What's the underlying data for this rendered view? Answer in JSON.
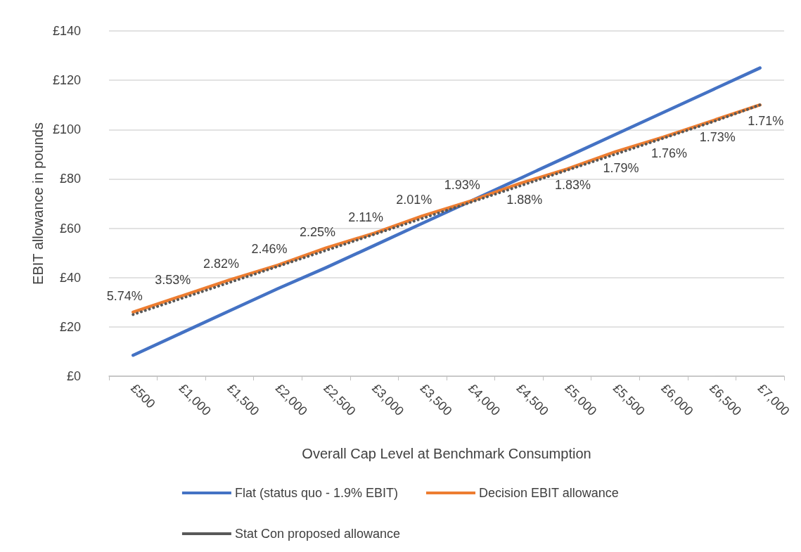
{
  "chart_data": {
    "type": "line",
    "xlabel": "Overall Cap Level at Benchmark Consumption",
    "ylabel": "EBIT allowance in pounds",
    "categories": [
      "£500",
      "£1,000",
      "£1,500",
      "£2,000",
      "£2,500",
      "£3,000",
      "£3,500",
      "£4,000",
      "£4,500",
      "£5,000",
      "£5,500",
      "£6,000",
      "£6,500",
      "£7,000"
    ],
    "series": [
      {
        "name": "Flat (status quo - 1.9% EBIT)",
        "color": "#4472c4",
        "line_style": "solid",
        "values": [
          8.5,
          17.5,
          26.5,
          35.5,
          44,
          53,
          62,
          71,
          80,
          89,
          98,
          107,
          116,
          125
        ]
      },
      {
        "name": "Decision EBIT allowance",
        "color": "#ed7d31",
        "line_style": "solid",
        "values": [
          26,
          32.5,
          39,
          45,
          52,
          58,
          65,
          71,
          78,
          84,
          91,
          97,
          103.5,
          110
        ]
      },
      {
        "name": "Stat Con proposed allowance",
        "color": "#595959",
        "line_style": "dotted",
        "values": [
          25,
          31.5,
          38,
          44.5,
          51,
          57.5,
          64,
          70.5,
          77,
          83.5,
          90,
          96.5,
          103,
          110
        ]
      }
    ],
    "ylim": [
      0,
      140
    ],
    "yticks": [
      {
        "value": 0,
        "label": "£0"
      },
      {
        "value": 20,
        "label": "£20"
      },
      {
        "value": 40,
        "label": "£40"
      },
      {
        "value": 60,
        "label": "£60"
      },
      {
        "value": 80,
        "label": "£80"
      },
      {
        "value": 100,
        "label": "£100"
      },
      {
        "value": 120,
        "label": "£120"
      },
      {
        "value": 140,
        "label": "£140"
      }
    ],
    "annotations": [
      {
        "text": "5.74%",
        "x": "£500",
        "y": 26
      },
      {
        "text": "3.53%",
        "x": "£1,000",
        "y": 32.5
      },
      {
        "text": "2.82%",
        "x": "£1,500",
        "y": 39
      },
      {
        "text": "2.46%",
        "x": "£2,000",
        "y": 45
      },
      {
        "text": "2.25%",
        "x": "£2,500",
        "y": 52
      },
      {
        "text": "2.11%",
        "x": "£3,000",
        "y": 58
      },
      {
        "text": "2.01%",
        "x": "£3,500",
        "y": 65
      },
      {
        "text": "1.93%",
        "x": "£4,000",
        "y": 71
      },
      {
        "text": "1.88%",
        "x": "£4,500",
        "y": 78
      },
      {
        "text": "1.83%",
        "x": "£5,000",
        "y": 84
      },
      {
        "text": "1.79%",
        "x": "£5,500",
        "y": 91
      },
      {
        "text": "1.76%",
        "x": "£6,000",
        "y": 97
      },
      {
        "text": "1.73%",
        "x": "£6,500",
        "y": 103.5
      },
      {
        "text": "1.71%",
        "x": "£7,000",
        "y": 110
      }
    ],
    "grid": "y",
    "legend": "bottom",
    "marker": "none"
  }
}
